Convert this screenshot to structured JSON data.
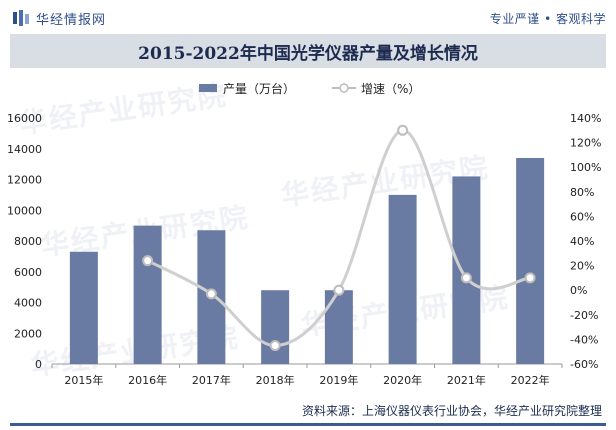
{
  "header": {
    "logo_text": "华经情报网",
    "slogan": "专业严谨 • 客观科学"
  },
  "watermark_text": "华经产业研究院",
  "chart_data": {
    "type": "bar",
    "title": "2015-2022年中国光学仪器产量及增长情况",
    "categories": [
      "2015年",
      "2016年",
      "2017年",
      "2018年",
      "2019年",
      "2020年",
      "2021年",
      "2022年"
    ],
    "series": [
      {
        "name": "产量（万台）",
        "type": "bar",
        "axis": "left",
        "color": "#6a7ba3",
        "values": [
          7300,
          9000,
          8700,
          4800,
          4800,
          11000,
          12200,
          13400
        ]
      },
      {
        "name": "增速（%）",
        "type": "line",
        "axis": "right",
        "color": "#cfcfcf",
        "values": [
          null,
          24,
          -3,
          -45,
          0,
          130,
          10,
          10
        ]
      }
    ],
    "ylim_left": [
      0,
      16000
    ],
    "yticks_left": [
      0,
      2000,
      4000,
      6000,
      8000,
      10000,
      12000,
      14000,
      16000
    ],
    "ylim_right": [
      -60,
      140
    ],
    "yticks_right": [
      "-60%",
      "-40%",
      "-20%",
      "0%",
      "20%",
      "40%",
      "60%",
      "80%",
      "100%",
      "120%",
      "140%"
    ],
    "grid": false,
    "legend_position": "top-center"
  },
  "footer": {
    "source": "资料来源：上海仪器仪表行业协会，华经产业研究院整理"
  },
  "colors": {
    "brand": "#2f4f8a",
    "title_band": "#d9dde4",
    "bar": "#6a7ba3",
    "line": "#cfcfcf"
  }
}
